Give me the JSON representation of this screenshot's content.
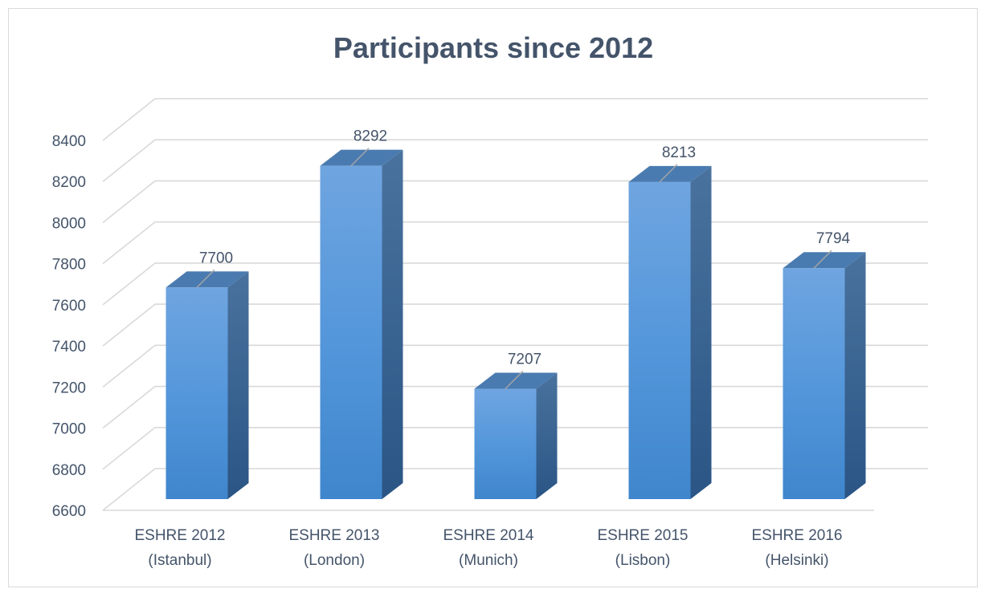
{
  "chart_data": {
    "type": "bar",
    "title": "Participants since 2012",
    "categories": [
      [
        "ESHRE 2012",
        "(Istanbul)"
      ],
      [
        "ESHRE 2013",
        "(London)"
      ],
      [
        "ESHRE 2014",
        "(Munich)"
      ],
      [
        "ESHRE 2015",
        "(Lisbon)"
      ],
      [
        "ESHRE 2016",
        "(Helsinki)"
      ]
    ],
    "values": [
      7700,
      8292,
      7207,
      8213,
      7794
    ],
    "data_labels": [
      "7700",
      "8292",
      "7207",
      "8213",
      "7794"
    ],
    "yticks": [
      "6600",
      "6800",
      "7000",
      "7200",
      "7400",
      "7600",
      "7800",
      "8000",
      "8200",
      "8400"
    ],
    "ylim": [
      6600,
      8400
    ],
    "grid": true,
    "style": "3d-column",
    "colors": {
      "bar_front_top": "#6fa5e0",
      "bar_front_bottom": "#3f86cc",
      "bar_side": "#2f5f93",
      "bar_top": "#4a7bb0",
      "text": "#44546a",
      "grid": "#d9d9d9"
    }
  }
}
